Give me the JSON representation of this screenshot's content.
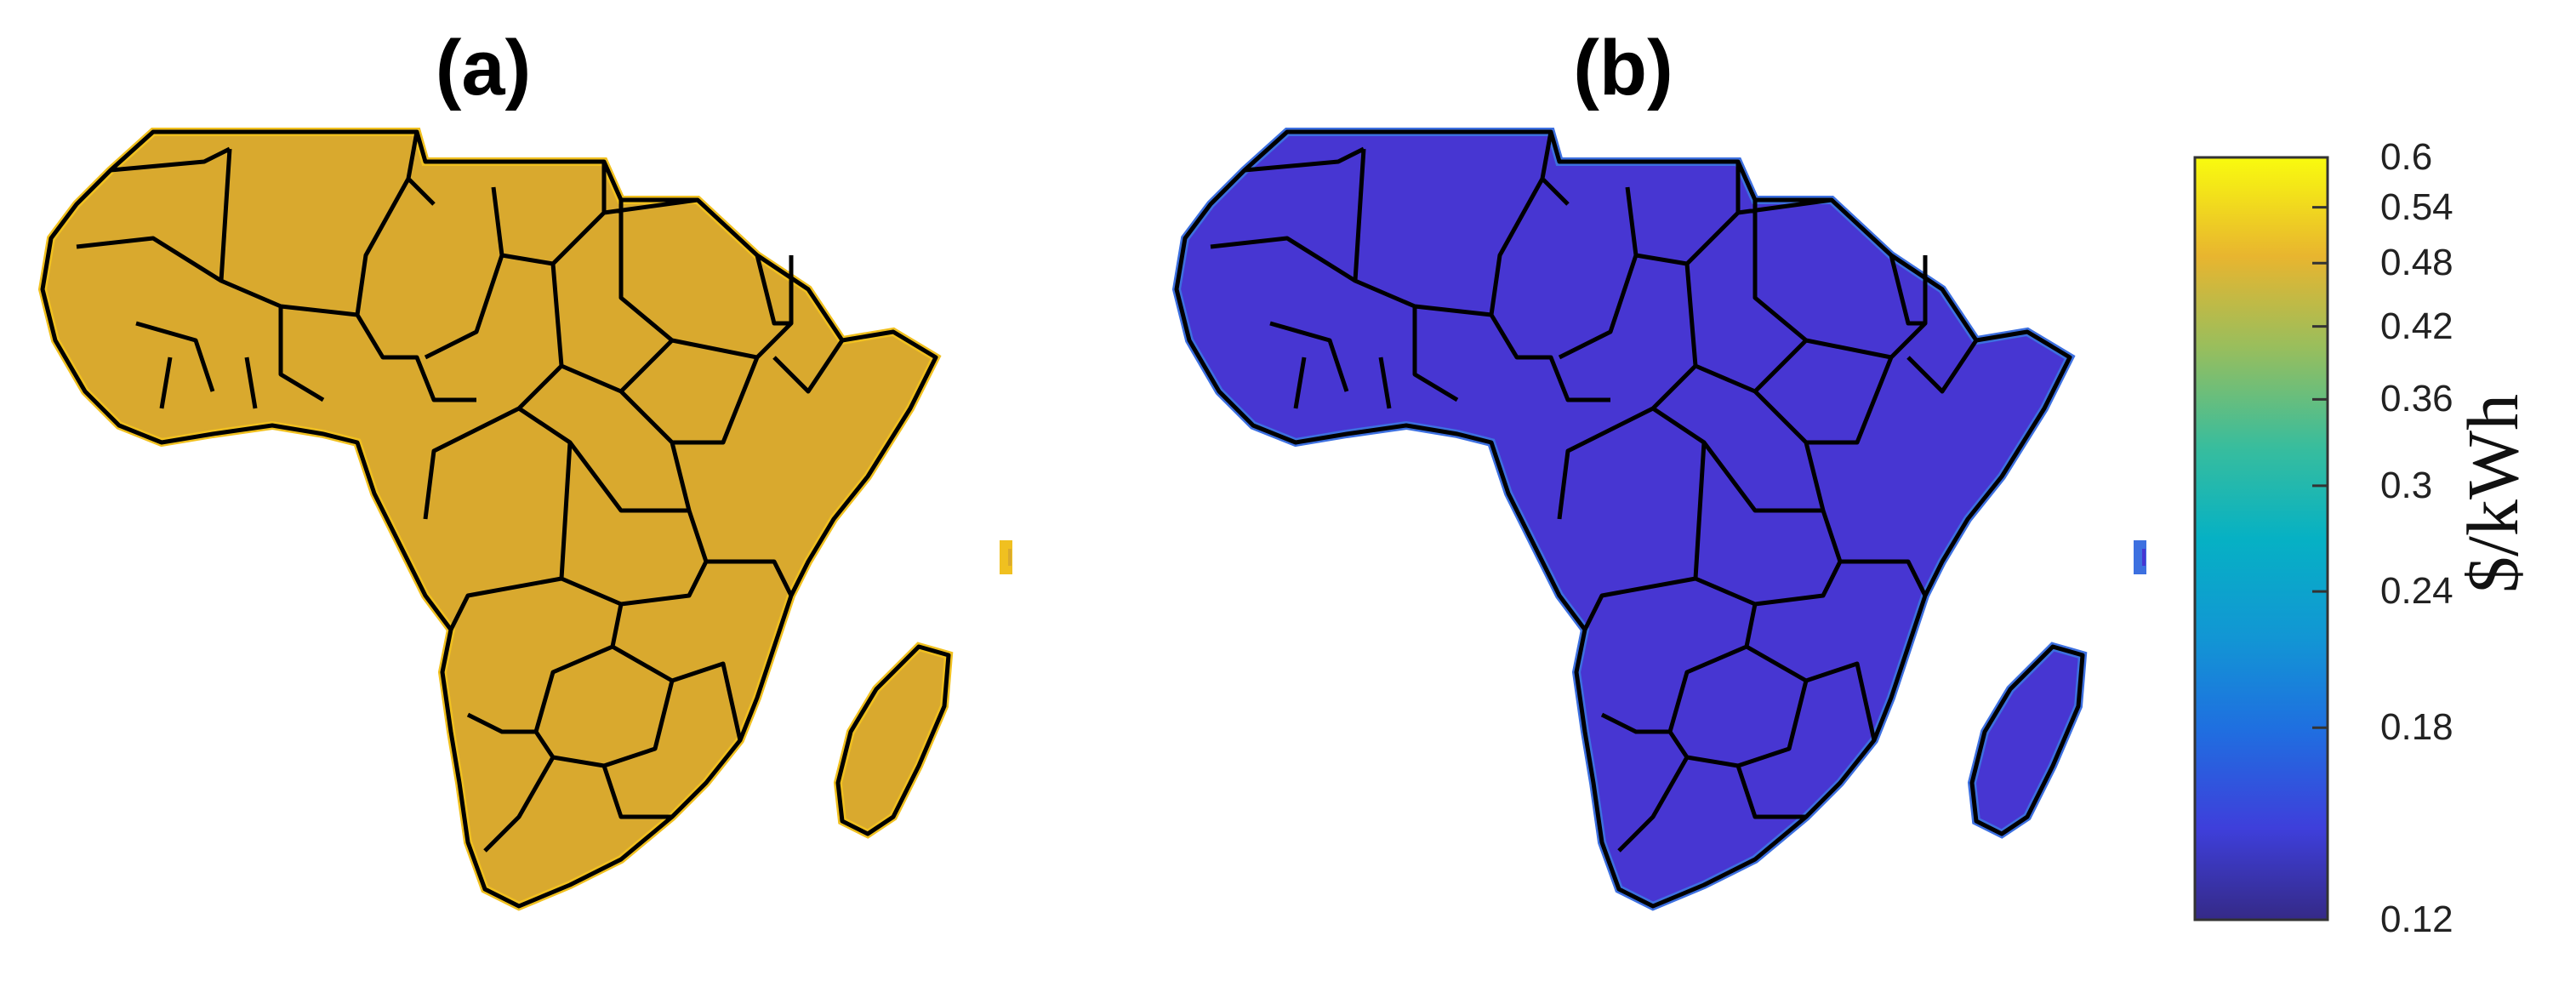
{
  "panels": [
    {
      "label": "(a)",
      "fill": "#d9a92e",
      "highlight": "#ecbb2c",
      "greenish": "#b9b03a",
      "edge": "#f0c020"
    },
    {
      "label": "(b)",
      "fill": "#4736d2",
      "highlight": "#3b5fdc",
      "greenish": "#4a3cd8",
      "edge": "#3d70e0"
    }
  ],
  "colorbar": {
    "unit": "$/kWh",
    "scale": "log",
    "min": 0.12,
    "max": 0.6,
    "ticks": [
      "0.6",
      "0.54",
      "0.48",
      "0.42",
      "0.36",
      "0.3",
      "0.24",
      "0.18",
      "0.12"
    ],
    "tick_values": [
      0.6,
      0.54,
      0.48,
      0.42,
      0.36,
      0.3,
      0.24,
      0.18,
      0.12
    ],
    "colormap": "parula"
  }
}
